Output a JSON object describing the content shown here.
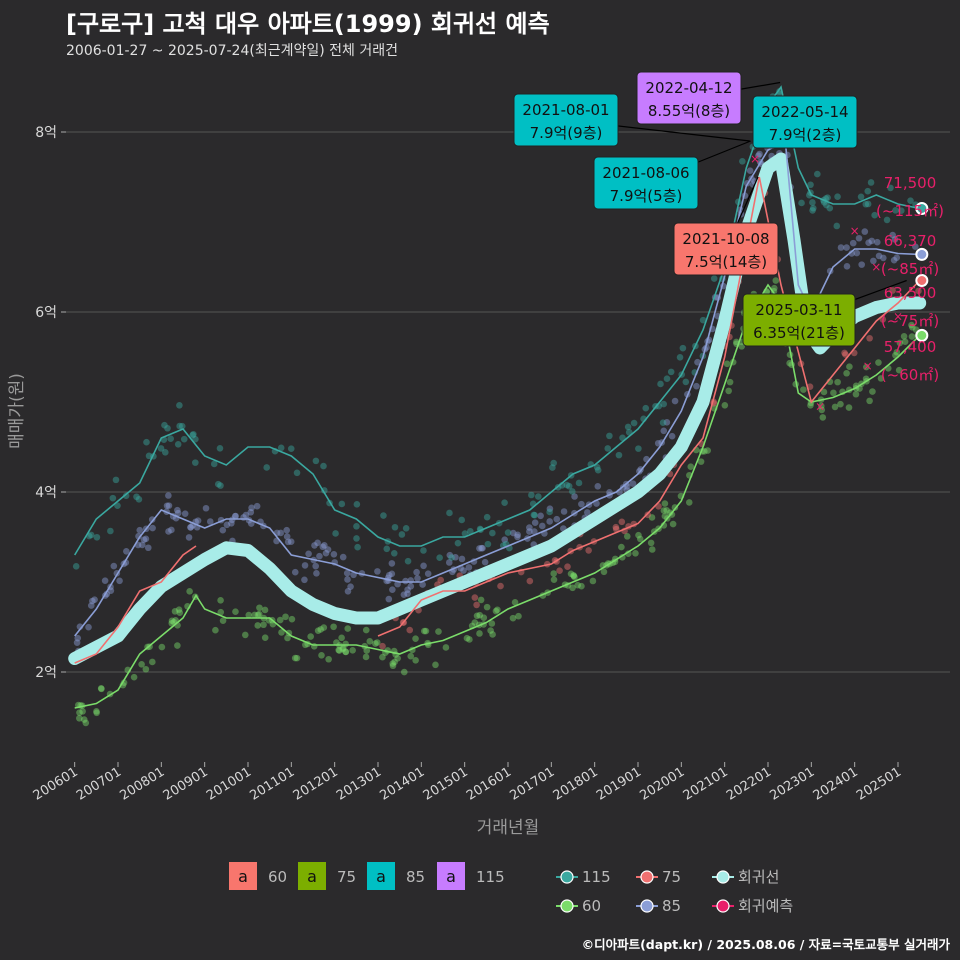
{
  "header": {
    "title": "[구로구] 고척 대우 아파트(1999) 회귀선 예측",
    "subtitle": "2006-01-27 ~ 2025-07-24(최근계약일) 전체 거래건"
  },
  "footer": "©디아파트(dapt.kr) / 2025.08.06 / 자료=국토교통부 실거래가",
  "colors": {
    "background": "#2b2a2c",
    "grid": "#555555",
    "s60": "#7bdc6a",
    "s75": "#f07070",
    "s85": "#8b9ed6",
    "s115": "#3aa8a0",
    "regression": "#a8ece8",
    "prediction": "#e8206a",
    "label60": "#f8766d",
    "label75": "#7cae00",
    "label85": "#00bfc4",
    "label115": "#c77cff"
  },
  "chart_data": {
    "type": "line",
    "xlabel": "거래년월",
    "ylabel": "매매가(원)",
    "x_range": [
      "2006-01",
      "2025-12"
    ],
    "ylim": [
      1.0,
      8.8
    ],
    "y_ticks": [
      {
        "value": 2,
        "label": "2억"
      },
      {
        "value": 4,
        "label": "4억"
      },
      {
        "value": 6,
        "label": "6억"
      },
      {
        "value": 8,
        "label": "8억"
      }
    ],
    "x_tick_labels": [
      "200601",
      "200701",
      "200801",
      "200901",
      "201001",
      "201101",
      "201201",
      "201301",
      "201401",
      "201501",
      "201601",
      "201701",
      "201801",
      "201901",
      "202001",
      "202101",
      "202201",
      "202301",
      "202401",
      "202501"
    ],
    "series": [
      {
        "name": "115",
        "key": "s115",
        "points": [
          [
            2006.0,
            3.3
          ],
          [
            2006.5,
            3.7
          ],
          [
            2007.0,
            3.9
          ],
          [
            2007.5,
            4.1
          ],
          [
            2008.0,
            4.6
          ],
          [
            2008.5,
            4.7
          ],
          [
            2009.0,
            4.4
          ],
          [
            2009.5,
            4.3
          ],
          [
            2010.0,
            4.5
          ],
          [
            2010.5,
            4.5
          ],
          [
            2011.0,
            4.4
          ],
          [
            2011.5,
            4.2
          ],
          [
            2012.0,
            3.8
          ],
          [
            2012.5,
            3.7
          ],
          [
            2013.0,
            3.5
          ],
          [
            2013.5,
            3.4
          ],
          [
            2014.0,
            3.4
          ],
          [
            2014.5,
            3.5
          ],
          [
            2015.0,
            3.5
          ],
          [
            2015.5,
            3.6
          ],
          [
            2016.0,
            3.7
          ],
          [
            2016.5,
            3.8
          ],
          [
            2017.0,
            4.0
          ],
          [
            2017.5,
            4.2
          ],
          [
            2018.0,
            4.3
          ],
          [
            2018.5,
            4.5
          ],
          [
            2019.0,
            4.7
          ],
          [
            2019.5,
            5.0
          ],
          [
            2020.0,
            5.3
          ],
          [
            2020.5,
            5.8
          ],
          [
            2021.0,
            6.5
          ],
          [
            2021.5,
            7.6
          ],
          [
            2022.0,
            8.3
          ],
          [
            2022.3,
            8.5
          ],
          [
            2022.7,
            7.6
          ],
          [
            2023.0,
            7.3
          ],
          [
            2023.5,
            7.2
          ],
          [
            2024.0,
            7.2
          ],
          [
            2024.5,
            7.3
          ],
          [
            2025.0,
            7.2
          ],
          [
            2025.5,
            7.15
          ]
        ]
      },
      {
        "name": "60",
        "key": "s60",
        "points": [
          [
            2006.0,
            1.6
          ],
          [
            2006.5,
            1.65
          ],
          [
            2007.0,
            1.8
          ],
          [
            2007.5,
            2.2
          ],
          [
            2008.0,
            2.4
          ],
          [
            2008.5,
            2.6
          ],
          [
            2008.8,
            2.85
          ],
          [
            2009.0,
            2.7
          ],
          [
            2009.5,
            2.6
          ],
          [
            2010.0,
            2.6
          ],
          [
            2010.5,
            2.6
          ],
          [
            2011.0,
            2.4
          ],
          [
            2011.5,
            2.3
          ],
          [
            2012.0,
            2.3
          ],
          [
            2012.5,
            2.3
          ],
          [
            2013.0,
            2.25
          ],
          [
            2013.5,
            2.2
          ],
          [
            2014.0,
            2.3
          ],
          [
            2014.5,
            2.35
          ],
          [
            2015.0,
            2.45
          ],
          [
            2015.5,
            2.55
          ],
          [
            2016.0,
            2.7
          ],
          [
            2016.5,
            2.8
          ],
          [
            2017.0,
            2.9
          ],
          [
            2017.5,
            3.0
          ],
          [
            2018.0,
            3.1
          ],
          [
            2018.5,
            3.25
          ],
          [
            2019.0,
            3.4
          ],
          [
            2019.5,
            3.6
          ],
          [
            2020.0,
            3.9
          ],
          [
            2020.5,
            4.5
          ],
          [
            2021.0,
            5.2
          ],
          [
            2021.5,
            5.9
          ],
          [
            2022.0,
            6.3
          ],
          [
            2022.3,
            6.1
          ],
          [
            2022.7,
            5.1
          ],
          [
            2023.0,
            5.0
          ],
          [
            2023.5,
            5.05
          ],
          [
            2024.0,
            5.15
          ],
          [
            2024.5,
            5.3
          ],
          [
            2025.0,
            5.5
          ],
          [
            2025.5,
            5.74
          ]
        ]
      },
      {
        "name": "75",
        "key": "s75",
        "points": [
          [
            2006.0,
            2.1
          ],
          [
            2006.5,
            2.2
          ],
          [
            2007.0,
            2.5
          ],
          [
            2007.5,
            2.9
          ],
          [
            2008.0,
            3.0
          ],
          [
            2008.5,
            3.3
          ],
          [
            2008.8,
            3.4
          ],
          [
            2013.0,
            2.4
          ],
          [
            2013.5,
            2.5
          ],
          [
            2014.0,
            2.8
          ],
          [
            2014.5,
            2.9
          ],
          [
            2015.0,
            2.9
          ],
          [
            2015.5,
            3.0
          ],
          [
            2016.0,
            3.1
          ],
          [
            2016.5,
            3.15
          ],
          [
            2017.0,
            3.2
          ],
          [
            2017.5,
            3.35
          ],
          [
            2018.0,
            3.45
          ],
          [
            2018.5,
            3.55
          ],
          [
            2019.0,
            3.65
          ],
          [
            2019.5,
            3.9
          ],
          [
            2020.0,
            4.3
          ],
          [
            2020.5,
            4.6
          ],
          [
            2021.0,
            5.5
          ],
          [
            2021.8,
            7.5
          ],
          [
            2022.3,
            6.3
          ],
          [
            2023.0,
            5.0
          ],
          [
            2023.5,
            5.3
          ],
          [
            2024.0,
            5.6
          ],
          [
            2024.5,
            5.9
          ],
          [
            2025.0,
            6.1
          ],
          [
            2025.5,
            6.35
          ]
        ]
      },
      {
        "name": "85",
        "key": "s85",
        "points": [
          [
            2006.0,
            2.4
          ],
          [
            2006.5,
            2.7
          ],
          [
            2007.0,
            3.1
          ],
          [
            2007.5,
            3.5
          ],
          [
            2008.0,
            3.8
          ],
          [
            2008.5,
            3.7
          ],
          [
            2009.0,
            3.6
          ],
          [
            2009.5,
            3.7
          ],
          [
            2010.0,
            3.7
          ],
          [
            2010.5,
            3.6
          ],
          [
            2011.0,
            3.3
          ],
          [
            2011.5,
            3.25
          ],
          [
            2012.0,
            3.2
          ],
          [
            2012.5,
            3.1
          ],
          [
            2013.0,
            3.05
          ],
          [
            2013.5,
            3.0
          ],
          [
            2014.0,
            3.0
          ],
          [
            2014.5,
            3.1
          ],
          [
            2015.0,
            3.2
          ],
          [
            2015.5,
            3.3
          ],
          [
            2016.0,
            3.4
          ],
          [
            2016.5,
            3.5
          ],
          [
            2017.0,
            3.6
          ],
          [
            2017.5,
            3.75
          ],
          [
            2018.0,
            3.9
          ],
          [
            2018.5,
            4.0
          ],
          [
            2019.0,
            4.2
          ],
          [
            2019.5,
            4.5
          ],
          [
            2020.0,
            4.9
          ],
          [
            2020.5,
            5.5
          ],
          [
            2021.0,
            6.4
          ],
          [
            2021.5,
            7.4
          ],
          [
            2022.0,
            7.8
          ],
          [
            2022.4,
            7.9
          ],
          [
            2022.7,
            6.3
          ],
          [
            2023.0,
            6.0
          ],
          [
            2023.5,
            6.5
          ],
          [
            2024.0,
            6.7
          ],
          [
            2024.5,
            6.7
          ],
          [
            2025.0,
            6.65
          ],
          [
            2025.5,
            6.64
          ]
        ]
      },
      {
        "name": "회귀선",
        "key": "regression",
        "points": [
          [
            2006.0,
            2.15
          ],
          [
            2007.0,
            2.4
          ],
          [
            2007.5,
            2.7
          ],
          [
            2008.0,
            2.95
          ],
          [
            2008.5,
            3.1
          ],
          [
            2009.0,
            3.25
          ],
          [
            2009.5,
            3.38
          ],
          [
            2010.0,
            3.35
          ],
          [
            2010.5,
            3.15
          ],
          [
            2011.0,
            2.9
          ],
          [
            2011.5,
            2.75
          ],
          [
            2012.0,
            2.65
          ],
          [
            2012.5,
            2.6
          ],
          [
            2013.0,
            2.6
          ],
          [
            2013.5,
            2.7
          ],
          [
            2014.0,
            2.8
          ],
          [
            2014.5,
            2.9
          ],
          [
            2015.0,
            3.0
          ],
          [
            2015.5,
            3.1
          ],
          [
            2016.0,
            3.2
          ],
          [
            2016.5,
            3.3
          ],
          [
            2017.0,
            3.4
          ],
          [
            2017.5,
            3.55
          ],
          [
            2018.0,
            3.7
          ],
          [
            2018.5,
            3.85
          ],
          [
            2019.0,
            4.0
          ],
          [
            2019.5,
            4.2
          ],
          [
            2020.0,
            4.5
          ],
          [
            2020.5,
            5.0
          ],
          [
            2021.0,
            5.9
          ],
          [
            2021.5,
            6.9
          ],
          [
            2022.0,
            7.6
          ],
          [
            2022.3,
            7.7
          ],
          [
            2022.6,
            6.8
          ],
          [
            2022.9,
            5.8
          ],
          [
            2023.2,
            5.6
          ],
          [
            2023.5,
            5.75
          ],
          [
            2024.0,
            5.95
          ],
          [
            2024.5,
            6.05
          ],
          [
            2025.0,
            6.1
          ],
          [
            2025.5,
            6.1
          ]
        ]
      }
    ],
    "scatter_density": [
      {
        "key": "s60",
        "center": "s60",
        "spread": 0.18,
        "count": 260,
        "from": 2006.0,
        "to": 2025.5
      },
      {
        "key": "s85",
        "center": "s85",
        "spread": 0.17,
        "count": 260,
        "from": 2006.0,
        "to": 2025.5
      },
      {
        "key": "s115",
        "center": "s115",
        "spread": 0.22,
        "count": 160,
        "from": 2006.0,
        "to": 2025.5
      },
      {
        "key": "s75",
        "center": "s75",
        "spread": 0.14,
        "count": 70,
        "from": 2013.0,
        "to": 2025.5
      }
    ],
    "prediction_marks": [
      [
        2021.7,
        7.7
      ],
      [
        2022.1,
        8.1
      ],
      [
        2023.2,
        4.95
      ],
      [
        2024.0,
        6.9
      ],
      [
        2024.5,
        6.5
      ],
      [
        2024.3,
        5.4
      ],
      [
        2025.0,
        5.95
      ]
    ],
    "callouts": [
      {
        "date": "2021-08-01",
        "price": "7.9억(9층)",
        "key": "label85"
      },
      {
        "date": "2022-04-12",
        "price": "8.55억(8층)",
        "key": "label115"
      },
      {
        "date": "2022-05-14",
        "price": "7.9억(2층)",
        "key": "label85"
      },
      {
        "date": "2021-08-06",
        "price": "7.9억(5층)",
        "key": "label85"
      },
      {
        "date": "2021-10-08",
        "price": "7.5억(14층)",
        "key": "label60"
      },
      {
        "date": "2025-03-11",
        "price": "6.35억(21층)",
        "key": "label75"
      }
    ],
    "end_labels": [
      {
        "value": "71,500",
        "area": "(~115㎡)",
        "y": 7.15,
        "key": "s115"
      },
      {
        "value": "66,370",
        "area": "(~85㎡)",
        "y": 6.64,
        "key": "s85"
      },
      {
        "value": "63,500",
        "area": "(~75㎡)",
        "y": 6.35,
        "key": "s75"
      },
      {
        "value": "57,400",
        "area": "(~60㎡)",
        "y": 5.74,
        "key": "s60"
      }
    ],
    "legend_left": {
      "glyph": "a",
      "items": [
        {
          "label": "60",
          "key": "label60"
        },
        {
          "label": "75",
          "key": "label75"
        },
        {
          "label": "85",
          "key": "label85"
        },
        {
          "label": "115",
          "key": "label115"
        }
      ]
    },
    "legend_right": [
      {
        "label": "115",
        "key": "s115"
      },
      {
        "label": "75",
        "key": "s75"
      },
      {
        "label": "회귀선",
        "key": "regression"
      },
      {
        "label": "60",
        "key": "s60"
      },
      {
        "label": "85",
        "key": "s85"
      },
      {
        "label": "회귀예측",
        "key": "prediction"
      }
    ],
    "grid": true
  }
}
